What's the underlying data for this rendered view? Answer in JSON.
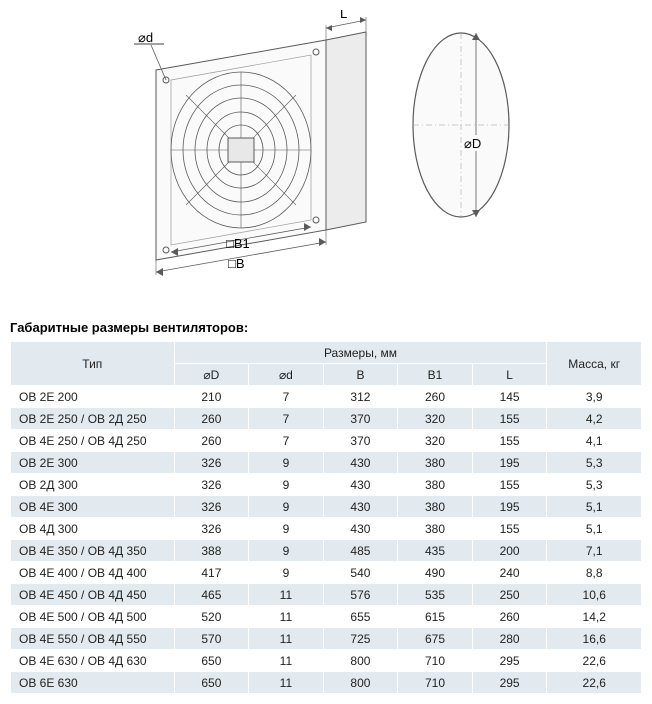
{
  "diagram": {
    "labels": {
      "od": "⌀d",
      "L": "L",
      "OD": "⌀D",
      "B1": "□B1",
      "B": "□B"
    },
    "stroke": "#5a5a5a",
    "fill_light": "#f5f5f5"
  },
  "section_title": "Габаритные размеры вентиляторов:",
  "table": {
    "header_top": {
      "type": "Тип",
      "dims": "Размеры, мм",
      "mass": "Масса, кг"
    },
    "header_sub": [
      "⌀D",
      "⌀d",
      "B",
      "B1",
      "L"
    ],
    "header_bg": "#e2eaef",
    "row_alt_bg": "#e2eaef",
    "text_color": "#222222",
    "font_size": 12,
    "rows": [
      [
        "ОВ 2Е 200",
        "210",
        "7",
        "312",
        "260",
        "145",
        "3,9"
      ],
      [
        "ОВ 2Е 250 / ОВ 2Д 250",
        "260",
        "7",
        "370",
        "320",
        "155",
        "4,2"
      ],
      [
        "ОВ 4Е 250 / ОВ 4Д 250",
        "260",
        "7",
        "370",
        "320",
        "155",
        "4,1"
      ],
      [
        "ОВ 2Е 300",
        "326",
        "9",
        "430",
        "380",
        "195",
        "5,3"
      ],
      [
        "ОВ 2Д 300",
        "326",
        "9",
        "430",
        "380",
        "155",
        "5,3"
      ],
      [
        "ОВ 4Е 300",
        "326",
        "9",
        "430",
        "380",
        "195",
        "5,1"
      ],
      [
        "ОВ 4Д 300",
        "326",
        "9",
        "430",
        "380",
        "155",
        "5,1"
      ],
      [
        "ОВ 4Е 350 / ОВ 4Д 350",
        "388",
        "9",
        "485",
        "435",
        "200",
        "7,1"
      ],
      [
        "ОВ 4Е 400 / ОВ 4Д 400",
        "417",
        "9",
        "540",
        "490",
        "240",
        "8,8"
      ],
      [
        "ОВ 4Е 450 / ОВ 4Д 450",
        "465",
        "11",
        "576",
        "535",
        "250",
        "10,6"
      ],
      [
        "ОВ 4Е 500 / ОВ 4Д 500",
        "520",
        "11",
        "655",
        "615",
        "260",
        "14,2"
      ],
      [
        "ОВ 4Е 550 / ОВ 4Д 550",
        "570",
        "11",
        "725",
        "675",
        "280",
        "16,6"
      ],
      [
        "ОВ 4Е 630 / ОВ 4Д 630",
        "650",
        "11",
        "800",
        "710",
        "295",
        "22,6"
      ],
      [
        "ОВ 6Е 630",
        "650",
        "11",
        "800",
        "710",
        "295",
        "22,6"
      ]
    ]
  }
}
